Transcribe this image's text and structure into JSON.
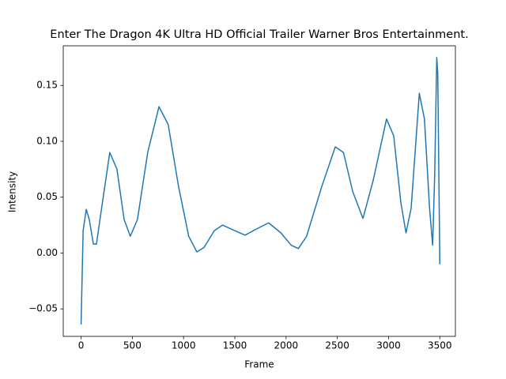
{
  "chart_data": {
    "type": "line",
    "title": "Enter The Dragon  4K Ultra HD Official Trailer  Warner Bros Entertainment.",
    "x_label": "Frame",
    "y_label": "Intensity",
    "x": [
      0,
      20,
      50,
      80,
      120,
      150,
      200,
      280,
      350,
      420,
      480,
      550,
      650,
      760,
      850,
      950,
      1050,
      1130,
      1200,
      1300,
      1380,
      1500,
      1600,
      1700,
      1830,
      1950,
      2050,
      2120,
      2200,
      2350,
      2480,
      2560,
      2650,
      2750,
      2850,
      2980,
      3050,
      3120,
      3170,
      3220,
      3300,
      3350,
      3400,
      3430,
      3450,
      3470,
      3480,
      3500
    ],
    "series": [
      {
        "name": "Intensity",
        "color": "#1f77b4",
        "values": [
          -0.064,
          0.02,
          0.039,
          0.03,
          0.008,
          0.008,
          0.04,
          0.09,
          0.075,
          0.03,
          0.015,
          0.03,
          0.09,
          0.131,
          0.115,
          0.06,
          0.015,
          0.001,
          0.005,
          0.02,
          0.025,
          0.02,
          0.016,
          0.021,
          0.027,
          0.018,
          0.007,
          0.004,
          0.015,
          0.06,
          0.095,
          0.09,
          0.055,
          0.031,
          0.065,
          0.12,
          0.105,
          0.045,
          0.018,
          0.04,
          0.143,
          0.12,
          0.04,
          0.007,
          0.07,
          0.175,
          0.16,
          -0.01
        ]
      }
    ],
    "xlim": [
      -174,
      3652
    ],
    "ylim": [
      -0.0746,
      0.1855
    ],
    "xticks": [
      0,
      500,
      1000,
      1500,
      2000,
      2500,
      3000,
      3500
    ],
    "yticks": [
      {
        "value": -0.05,
        "label": "−0.05"
      },
      {
        "value": 0,
        "label": "0.00"
      },
      {
        "value": 0.05,
        "label": "0.05"
      },
      {
        "value": 0.1,
        "label": "0.10"
      },
      {
        "value": 0.15,
        "label": "0.15"
      }
    ],
    "grid": false
  }
}
